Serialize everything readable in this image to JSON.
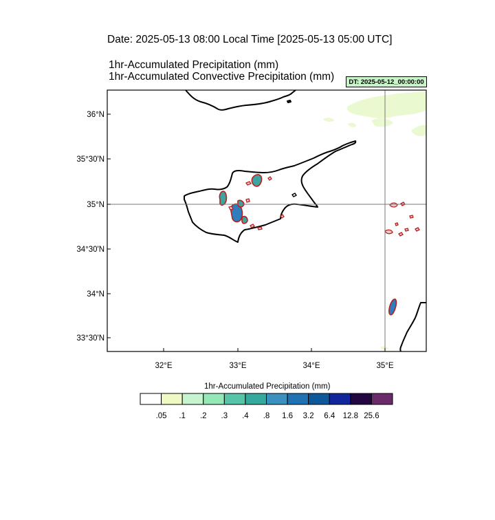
{
  "header": {
    "date_line": "Date: 2025-05-13  08:00 Local Time [2025-05-13  05:00 UTC]",
    "line1": "1hr-Accumulated Precipitation   (mm)",
    "line2": "1hr-Accumulated Convective Precipitation   (mm)",
    "dt_badge": "DT: 2025-05-12_00:00:00"
  },
  "map": {
    "lat_labels": [
      "36°N",
      "35°30'N",
      "35°N",
      "34°30'N",
      "34°N",
      "33°30'N"
    ],
    "lon_labels": [
      "32°E",
      "33°E",
      "34°E",
      "35°E"
    ],
    "colors": {
      "land_outline": "#000000",
      "convective_contour": "#b52020",
      "precip_light": "#e6f8c8",
      "precip_mid": "#3ea4a0",
      "precip_high": "#2f7dbd"
    }
  },
  "colorbar": {
    "title": "1hr-Accumulated Precipitation  (mm)",
    "thresholds": [
      ".05",
      ".1",
      ".2",
      ".3",
      ".4",
      ".8",
      "1.6",
      "3.2",
      "6.4",
      "12.8",
      "25.6"
    ],
    "colors": [
      "#ffffff",
      "#eef9c4",
      "#c6f4cf",
      "#95e8b6",
      "#56c4a6",
      "#34a99c",
      "#3b91bd",
      "#1f72b4",
      "#0c5898",
      "#12269b",
      "#230741",
      "#6b2a6a"
    ]
  }
}
